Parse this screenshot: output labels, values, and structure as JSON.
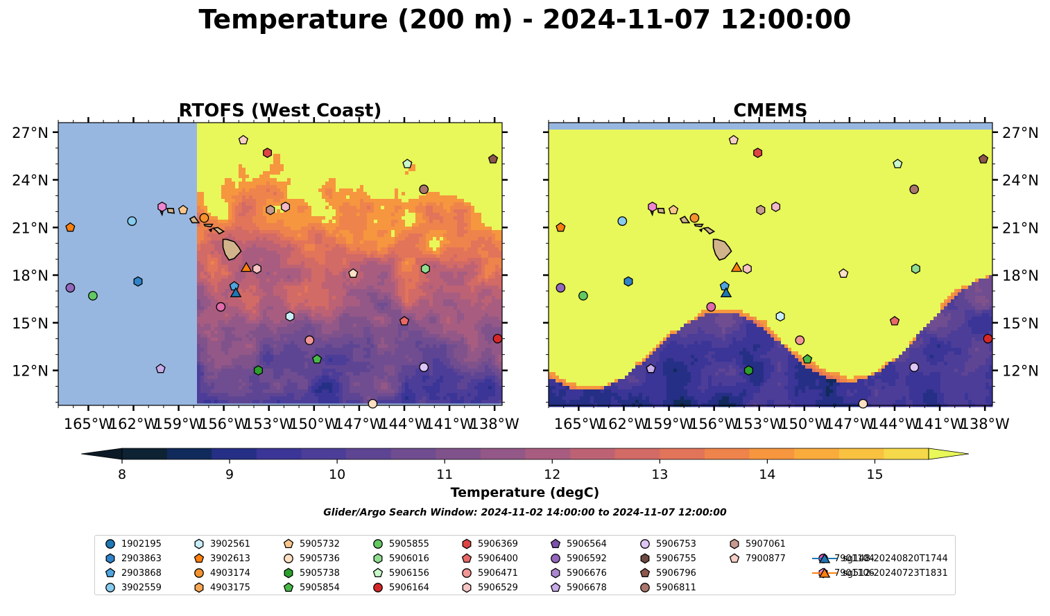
{
  "figure": {
    "title": "Temperature (200 m) - 2024-11-07 12:00:00",
    "search_window": "Glider/Argo Search Window: 2024-11-02 14:00:00 to 2024-11-07 12:00:00"
  },
  "chart_data": [
    {
      "type": "heatmap",
      "title": "RTOFS (West Coast)",
      "xlim": [
        -167,
        -137.5
      ],
      "ylim": [
        9.8,
        27.6
      ],
      "x_ticks": [
        "165°W",
        "162°W",
        "159°W",
        "156°W",
        "153°W",
        "150°W",
        "147°W",
        "144°W",
        "141°W",
        "138°W"
      ],
      "x_tick_values": [
        -165,
        -162,
        -159,
        -156,
        -153,
        -150,
        -147,
        -144,
        -141,
        -138
      ],
      "y_ticks": [
        "27°N",
        "24°N",
        "21°N",
        "18°N",
        "15°N",
        "12°N"
      ],
      "y_tick_values": [
        27,
        24,
        21,
        18,
        15,
        12
      ],
      "y_axis_side": "left",
      "model_data_west_limit": -157.7,
      "no_data_color": "#98b7e0"
    },
    {
      "type": "heatmap",
      "title": "CMEMS",
      "xlim": [
        -167,
        -137.5
      ],
      "ylim": [
        9.8,
        27.6
      ],
      "x_ticks": [
        "165°W",
        "162°W",
        "159°W",
        "156°W",
        "153°W",
        "150°W",
        "147°W",
        "144°W",
        "141°W",
        "138°W"
      ],
      "x_tick_values": [
        -165,
        -162,
        -159,
        -156,
        -153,
        -150,
        -147,
        -144,
        -141,
        -138
      ],
      "y_ticks": [
        "27°N",
        "24°N",
        "21°N",
        "18°N",
        "15°N",
        "12°N"
      ],
      "y_tick_values": [
        27,
        24,
        21,
        18,
        15,
        12
      ],
      "y_axis_side": "right",
      "model_data_north_limit": 27.1,
      "no_data_color": "#98b7e0"
    }
  ],
  "colorbar": {
    "label": "Temperature (degC)",
    "range": [
      8,
      15.5
    ],
    "step": 0.5,
    "extend": "both",
    "ticks": [
      8,
      9,
      10,
      11,
      12,
      13,
      14,
      15
    ],
    "tick_labels": [
      "8",
      "9",
      "10",
      "11",
      "12",
      "13",
      "14",
      "15"
    ],
    "colors": [
      "#0d2233",
      "#112a5c",
      "#252f86",
      "#3a3596",
      "#4c3d98",
      "#5e4593",
      "#6f4d90",
      "#80528b",
      "#935887",
      "#a85d80",
      "#bd6274",
      "#d26a66",
      "#e2745a",
      "#ee844b",
      "#f6963f",
      "#f9ab3c",
      "#f9c140",
      "#f5d94a"
    ],
    "under_color": "#0b1a26",
    "over_color": "#e8f759"
  },
  "markers": [
    {
      "id": "1902195",
      "shape": "circle",
      "color": "#1f77b4",
      "lon": null,
      "lat": null
    },
    {
      "id": "2903863",
      "shape": "hexagon",
      "color": "#2f83c8",
      "lon": -161.7,
      "lat": 17.6
    },
    {
      "id": "2903868",
      "shape": "pentagon",
      "color": "#4ea4de",
      "lon": -155.3,
      "lat": 17.3
    },
    {
      "id": "3902559",
      "shape": "circle",
      "color": "#87cbee",
      "lon": -162.1,
      "lat": 21.4
    },
    {
      "id": "3902561",
      "shape": "hexagon",
      "color": "#c9eef9",
      "lon": -151.6,
      "lat": 15.4
    },
    {
      "id": "3902613",
      "shape": "pentagon",
      "color": "#ff7f0e",
      "lon": -166.2,
      "lat": 21.0
    },
    {
      "id": "4903174",
      "shape": "circle",
      "color": "#f5922e",
      "lon": -157.3,
      "lat": 21.6
    },
    {
      "id": "4903175",
      "shape": "hexagon",
      "color": "#f8a653",
      "lon": null,
      "lat": null
    },
    {
      "id": "5905732",
      "shape": "pentagon",
      "color": "#fbc68c",
      "lon": -158.7,
      "lat": 22.1
    },
    {
      "id": "5905736",
      "shape": "circle",
      "color": "#fde0c2",
      "lon": -146.1,
      "lat": 9.9
    },
    {
      "id": "5905738",
      "shape": "hexagon",
      "color": "#2ca02c",
      "lon": -153.7,
      "lat": 12.0
    },
    {
      "id": "5905854",
      "shape": "pentagon",
      "color": "#49b849",
      "lon": -149.8,
      "lat": 12.7
    },
    {
      "id": "5905855",
      "shape": "circle",
      "color": "#62c862",
      "lon": -164.7,
      "lat": 16.7
    },
    {
      "id": "5906016",
      "shape": "hexagon",
      "color": "#90dd90",
      "lon": -142.6,
      "lat": 18.4
    },
    {
      "id": "5906156",
      "shape": "pentagon",
      "color": "#c9f7c9",
      "lon": -143.8,
      "lat": 25.0
    },
    {
      "id": "5906164",
      "shape": "circle",
      "color": "#d62728",
      "lon": -137.8,
      "lat": 14.0
    },
    {
      "id": "5906369",
      "shape": "hexagon",
      "color": "#df4444",
      "lon": -153.1,
      "lat": 25.7
    },
    {
      "id": "5906400",
      "shape": "pentagon",
      "color": "#e86868",
      "lon": -144.0,
      "lat": 15.1
    },
    {
      "id": "5906471",
      "shape": "circle",
      "color": "#f19595",
      "lon": -150.3,
      "lat": 13.9
    },
    {
      "id": "5906529",
      "shape": "hexagon",
      "color": "#f7c4c4",
      "lon": -153.8,
      "lat": 18.4
    },
    {
      "id": "5906564",
      "shape": "pentagon",
      "color": "#7a52a8",
      "lon": null,
      "lat": null
    },
    {
      "id": "5906592",
      "shape": "circle",
      "color": "#9467bd",
      "lon": -166.2,
      "lat": 17.2
    },
    {
      "id": "5906676",
      "shape": "hexagon",
      "color": "#aa86d0",
      "lon": null,
      "lat": null
    },
    {
      "id": "5906678",
      "shape": "pentagon",
      "color": "#c8acea",
      "lon": -160.2,
      "lat": 12.1
    },
    {
      "id": "5906753",
      "shape": "circle",
      "color": "#ddc6f6",
      "lon": -142.7,
      "lat": 12.2
    },
    {
      "id": "5906755",
      "shape": "hexagon",
      "color": "#6e4a40",
      "lon": null,
      "lat": null
    },
    {
      "id": "5906796",
      "shape": "pentagon",
      "color": "#8c564b",
      "lon": -138.1,
      "lat": 25.3
    },
    {
      "id": "5906811",
      "shape": "circle",
      "color": "#a9766b",
      "lon": -142.7,
      "lat": 23.4
    },
    {
      "id": "5907061",
      "shape": "hexagon",
      "color": "#c89a8f",
      "lon": -152.9,
      "lat": 22.1
    },
    {
      "id": "7900877",
      "shape": "pentagon",
      "color": "#f8cfc4",
      "lon": -154.7,
      "lat": 26.5
    },
    {
      "id": "7901104",
      "shape": "circle",
      "color": "#e04fb8",
      "lon": null,
      "lat": null
    },
    {
      "id": "7901106",
      "shape": "hexagon",
      "color": "#ef86d2",
      "lon": -160.1,
      "lat": 22.3
    },
    {
      "id": "sg148-20240820T1744",
      "shape": "triangle",
      "color": "#1f77b4",
      "line": "#1f77b4",
      "lon": -155.2,
      "lat": 16.9
    },
    {
      "id": "sg512-20240723T1831",
      "shape": "triangle",
      "color": "#ff7f0e",
      "line": "#ff7f0e",
      "lon": -154.5,
      "lat": 18.5
    }
  ],
  "extra_markers": [
    {
      "shape": "hexagon",
      "color": "#f2b9c9",
      "lon": -151.9,
      "lat": 22.3
    },
    {
      "shape": "pentagon",
      "color": "#fce1c8",
      "lon": -147.4,
      "lat": 18.1
    },
    {
      "shape": "circle",
      "color": "#e06aaa",
      "lon": -156.2,
      "lat": 16.0
    }
  ]
}
